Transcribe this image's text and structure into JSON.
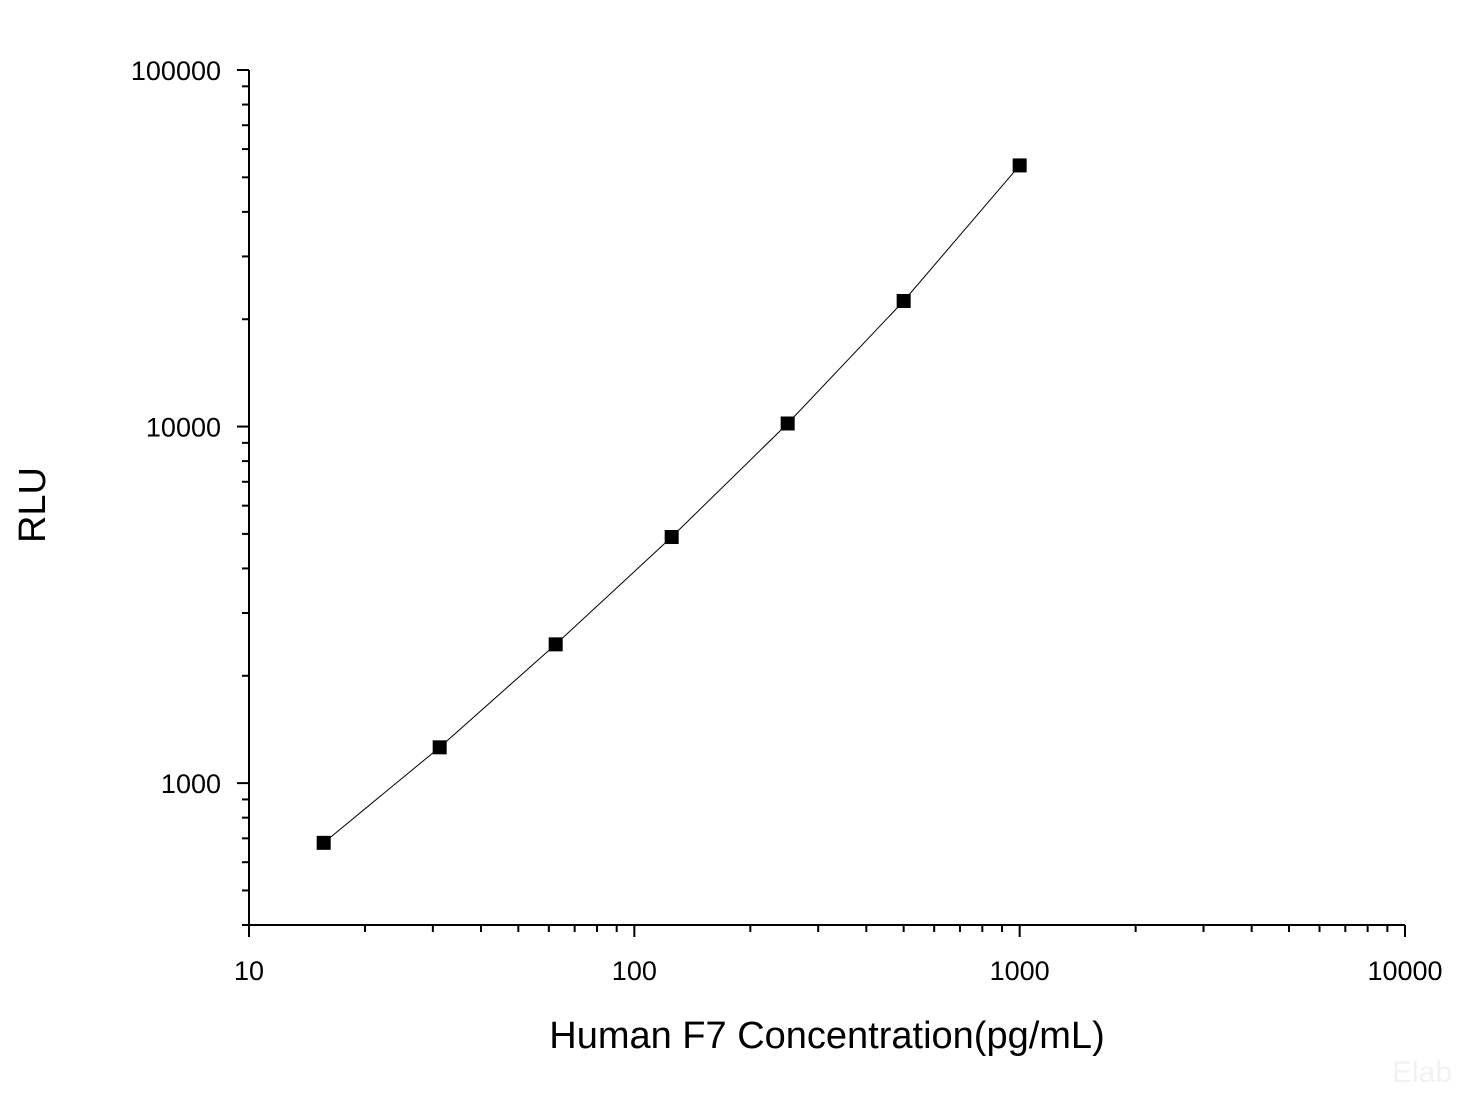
{
  "chart_data": {
    "type": "scatter",
    "title": "",
    "xlabel": "Human F7 Concentration(pg/mL)",
    "ylabel": "RLU",
    "x_scale": "log",
    "y_scale": "log",
    "xlim": [
      10,
      10000
    ],
    "ylim": [
      400,
      100000
    ],
    "x_ticks": [
      10,
      100,
      1000,
      10000
    ],
    "x_tick_labels": [
      "10",
      "100",
      "1000",
      "10000"
    ],
    "y_ticks": [
      1000,
      10000,
      100000
    ],
    "y_tick_labels": [
      "1000",
      "10000",
      "100000"
    ],
    "grid": false,
    "legend": "none",
    "marker": "square",
    "marker_color": "#000000",
    "line_color": "#000000",
    "series": [
      {
        "x": [
          15.625,
          31.25,
          62.5,
          125,
          250,
          500,
          1000
        ],
        "y": [
          680,
          1260,
          2450,
          4900,
          10200,
          22500,
          54000
        ]
      }
    ]
  },
  "watermark": "Elab"
}
